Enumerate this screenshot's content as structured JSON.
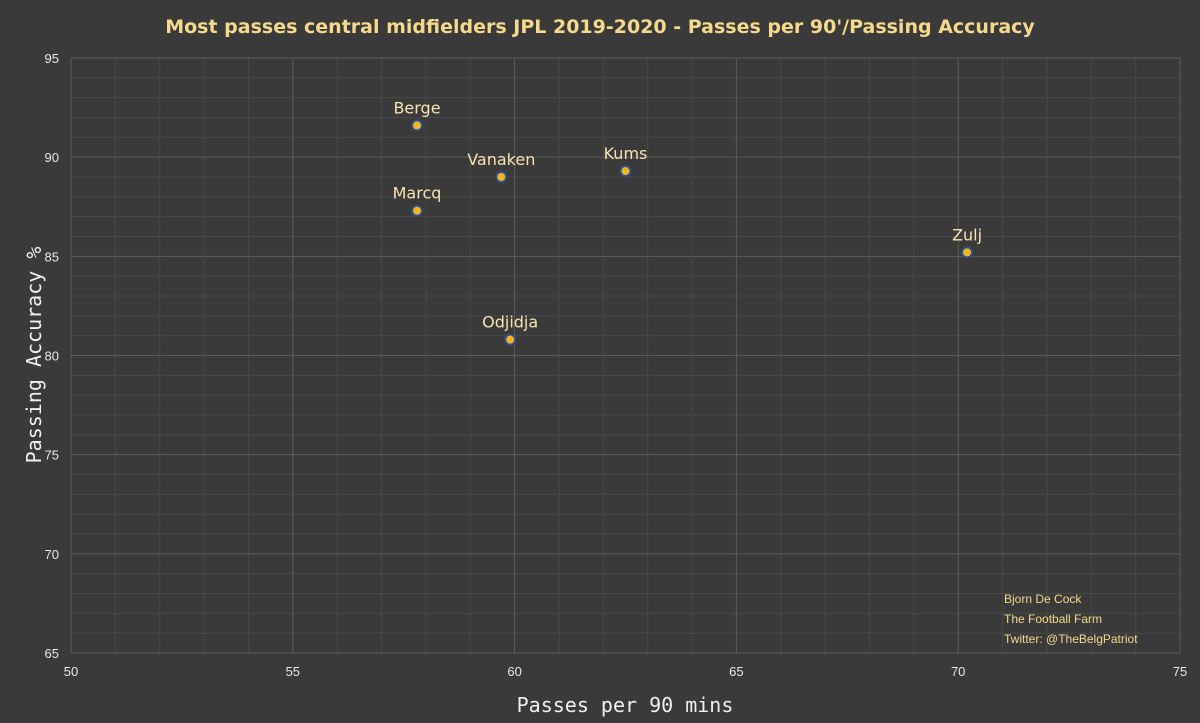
{
  "chart_data": {
    "type": "scatter",
    "title": "Most passes central midfielders JPL 2019-2020 - Passes per 90'/Passing Accuracy",
    "xlabel": "Passes per 90 mins",
    "ylabel": "Passing Accuracy %",
    "xlim": [
      50,
      75
    ],
    "ylim": [
      65,
      95
    ],
    "x_ticks": [
      "50",
      "55",
      "60",
      "65",
      "70",
      "75"
    ],
    "y_ticks": [
      "65",
      "70",
      "75",
      "80",
      "85",
      "90",
      "95"
    ],
    "grid": true,
    "points": [
      {
        "label": "Berge",
        "x": 57.8,
        "y": 91.6
      },
      {
        "label": "Vanaken",
        "x": 59.7,
        "y": 89.0
      },
      {
        "label": "Kums",
        "x": 62.5,
        "y": 89.3
      },
      {
        "label": "Marcq",
        "x": 57.8,
        "y": 87.3
      },
      {
        "label": "Zulj",
        "x": 70.2,
        "y": 85.2
      },
      {
        "label": "Odjidja",
        "x": 59.9,
        "y": 80.8
      }
    ],
    "credits": [
      "Bjorn De Cock",
      "The Football Farm",
      "Twitter: @TheBelgPatriot"
    ],
    "colors": {
      "background": "#3a3a3a",
      "title": "#f5d98c",
      "point_fill": "#f2b71f",
      "point_edge": "#2f4f8f",
      "label": "#f7e3b0",
      "credit": "#f5d98c",
      "major_grid": "#5c5c5c",
      "minor_grid": "#484848"
    }
  }
}
